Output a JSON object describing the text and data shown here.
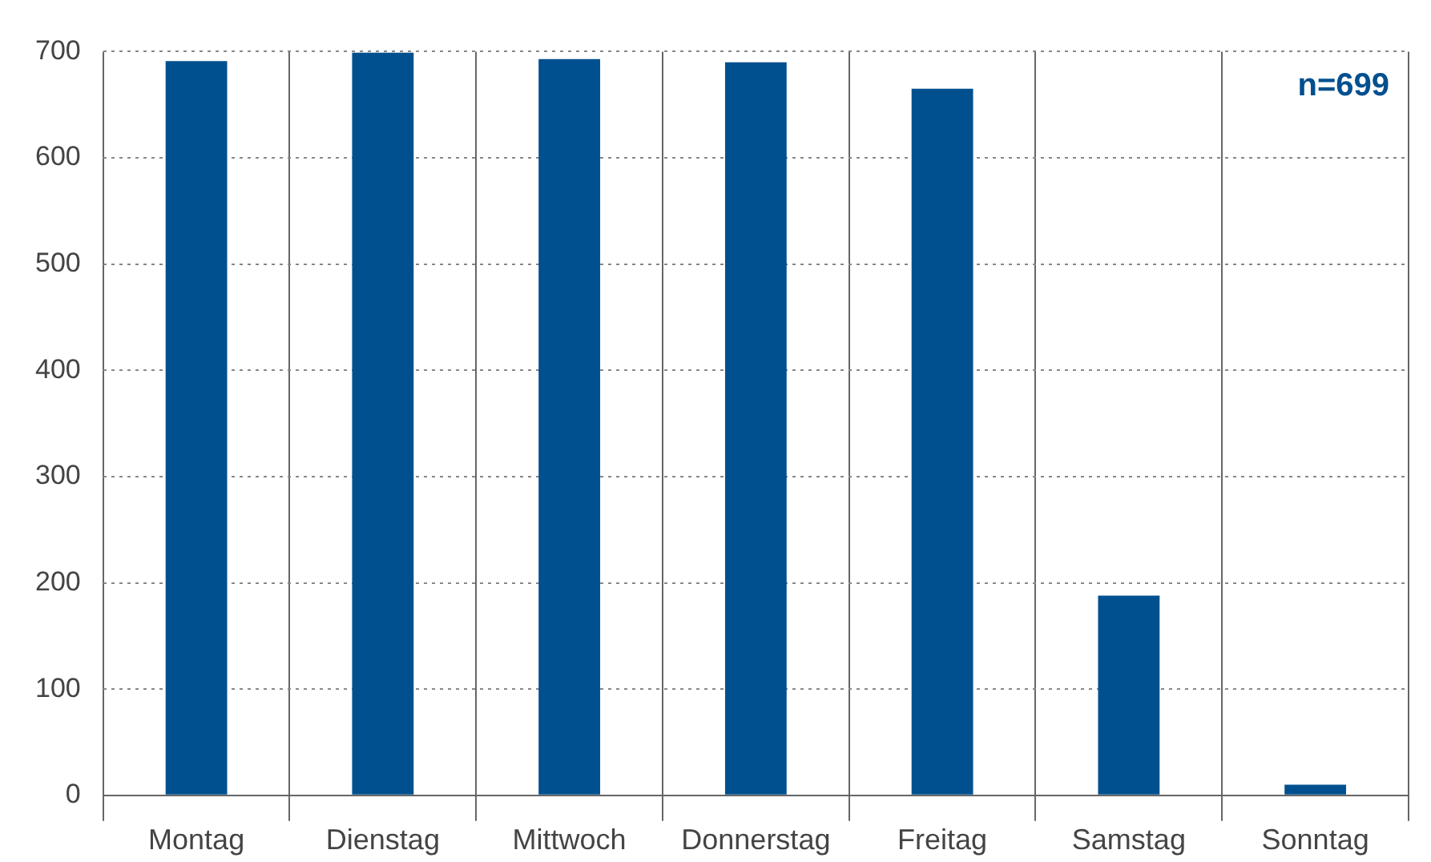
{
  "chart_data": {
    "type": "bar",
    "categories": [
      "Montag",
      "Dienstag",
      "Mittwoch",
      "Donnerstag",
      "Freitag",
      "Samstag",
      "Sonntag"
    ],
    "values": [
      691,
      699,
      693,
      690,
      665,
      188,
      10
    ],
    "color": "#00508f",
    "ylim": [
      0,
      700
    ],
    "yticks": [
      0,
      100,
      200,
      300,
      400,
      500,
      600,
      700
    ],
    "grid": true,
    "annotations": [
      "n=699"
    ]
  }
}
